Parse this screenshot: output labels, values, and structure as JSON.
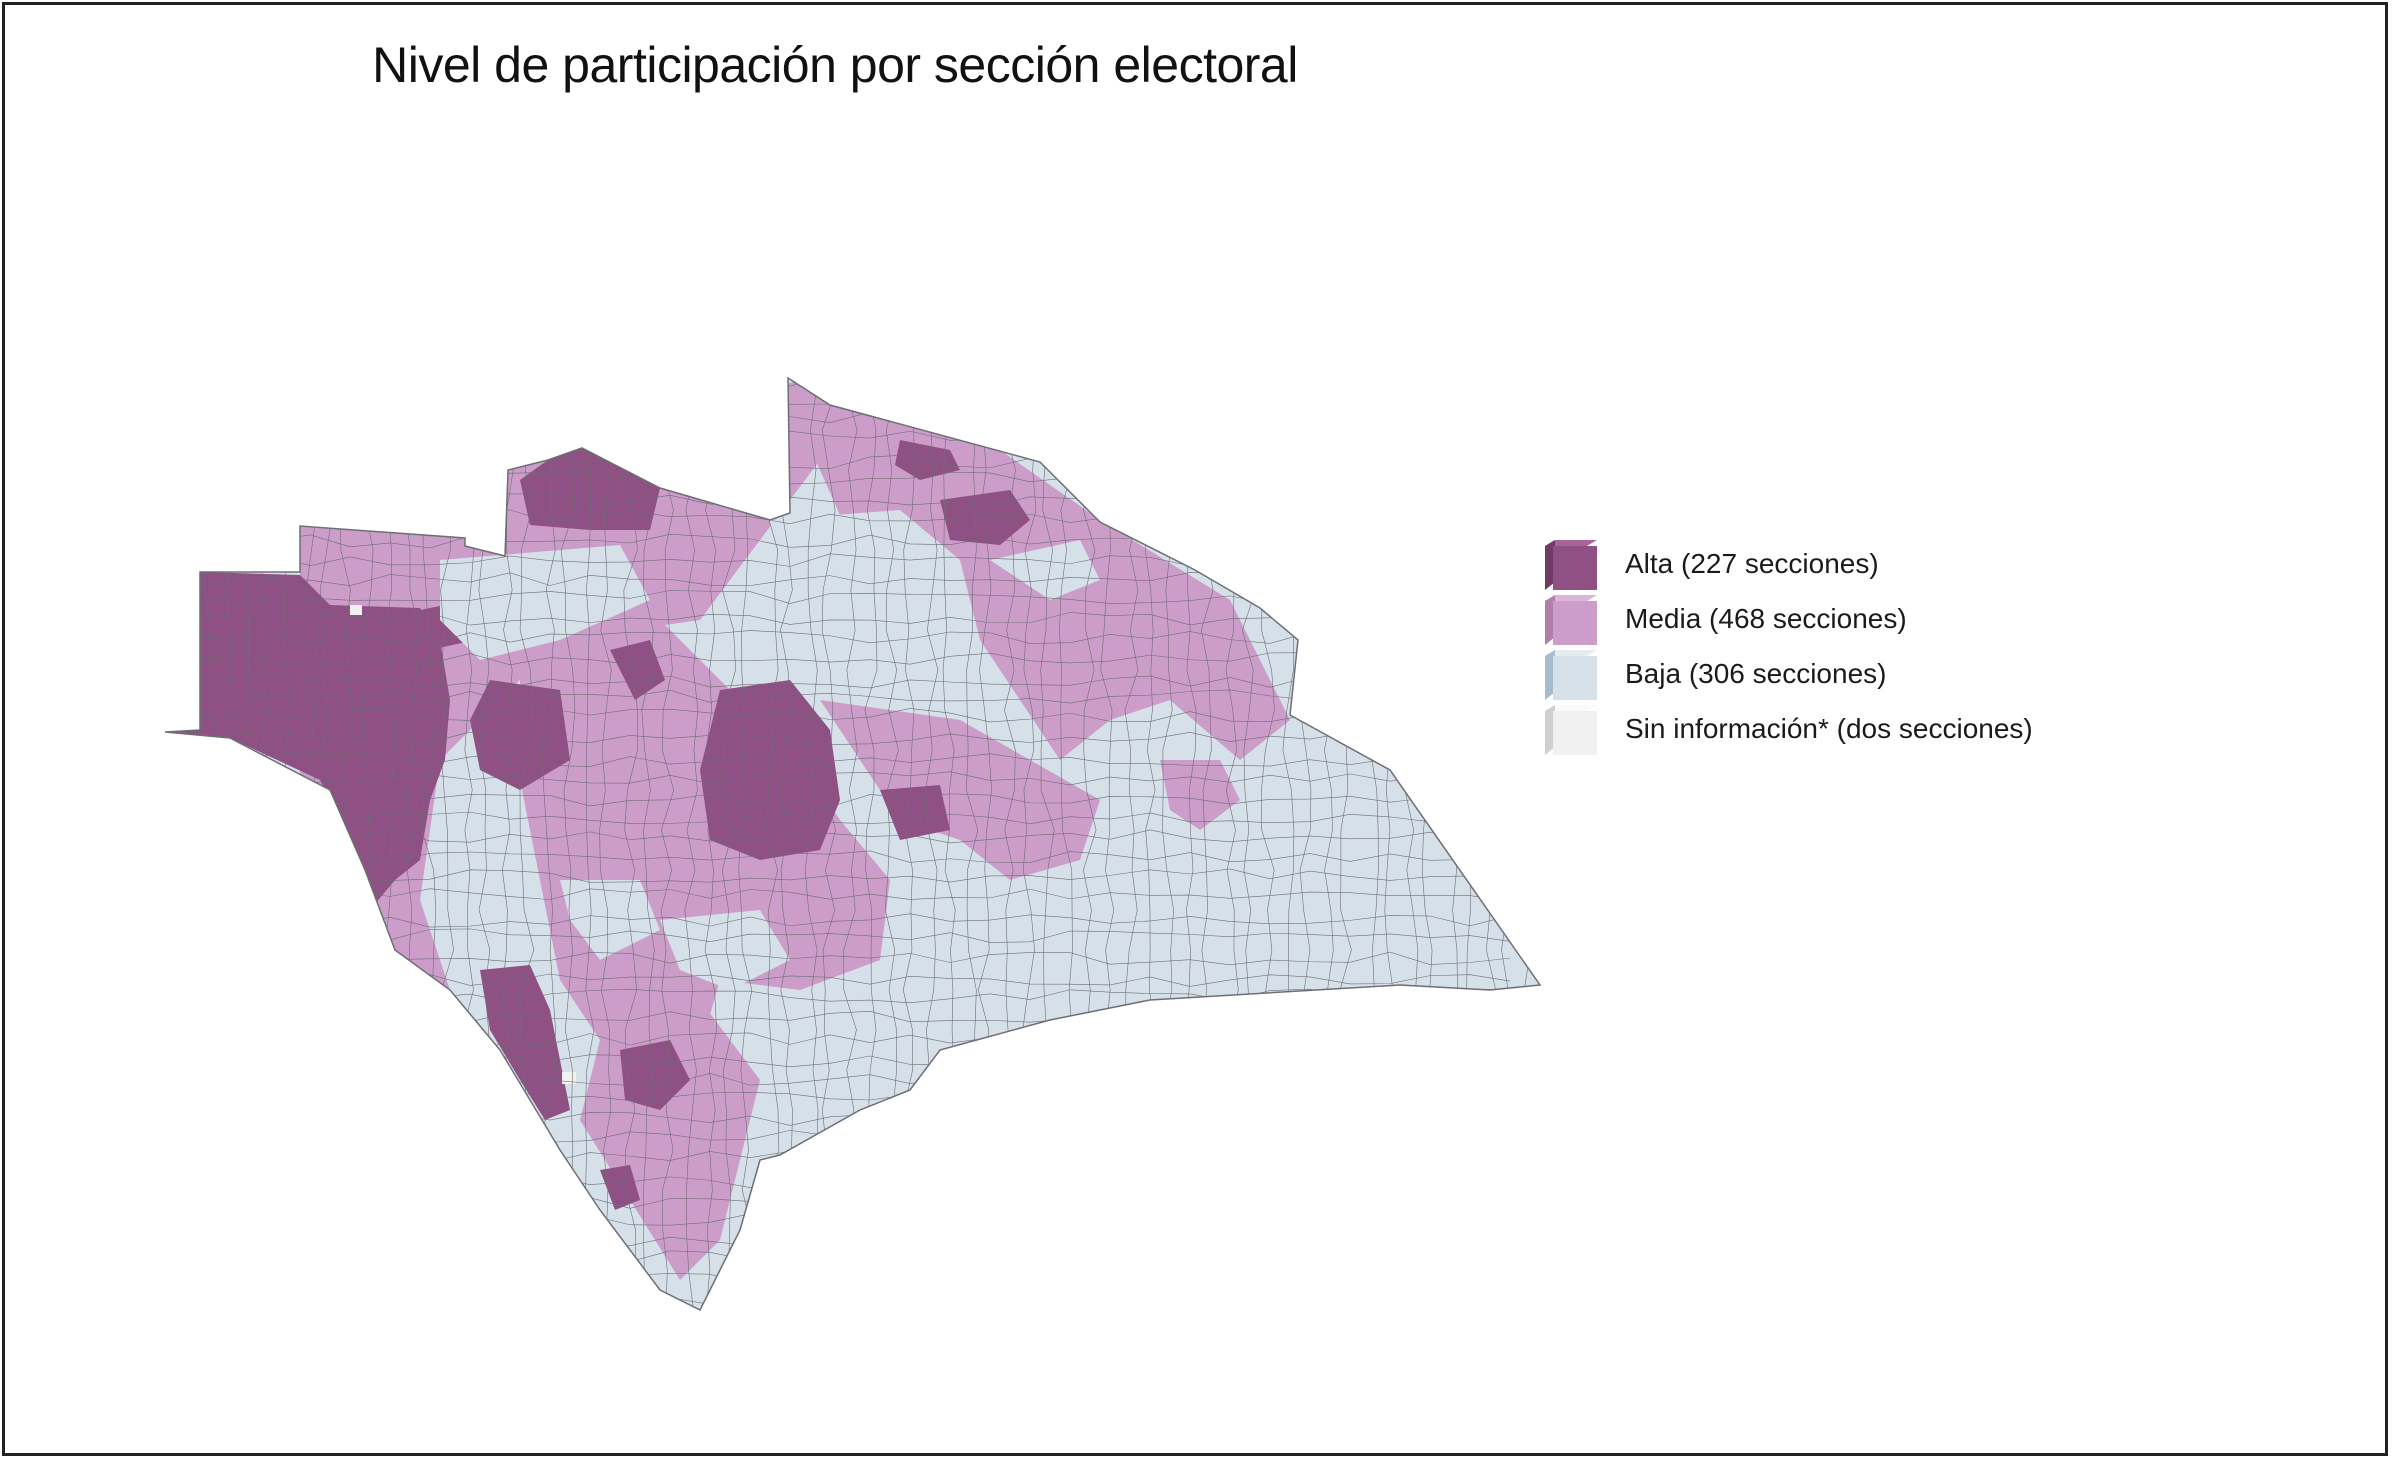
{
  "title": "Nivel de participación por sección electoral",
  "colors": {
    "alta": "#8f5083",
    "media": "#cc9dc8",
    "baja": "#d5e0e9",
    "sin_info": "#f1f1f1",
    "border": "#6e6e76",
    "frame": "#222222"
  },
  "legend": [
    {
      "key": "alta",
      "label": "Alta (227 secciones)",
      "front": "#8f5083",
      "top": "#a8659b",
      "side": "#6e3a66"
    },
    {
      "key": "media",
      "label": "Media (468 secciones)",
      "front": "#cc9dc8",
      "top": "#dcb6d8",
      "side": "#b07ea9"
    },
    {
      "key": "baja",
      "label": "Baja (306 secciones)",
      "front": "#d5e0e9",
      "top": "#e4ecf2",
      "side": "#a9bccb"
    },
    {
      "key": "sin_info",
      "label": "Sin información* (dos secciones)",
      "front": "#f1f1f1",
      "top": "#fafafa",
      "side": "#cfcfcf"
    }
  ]
}
